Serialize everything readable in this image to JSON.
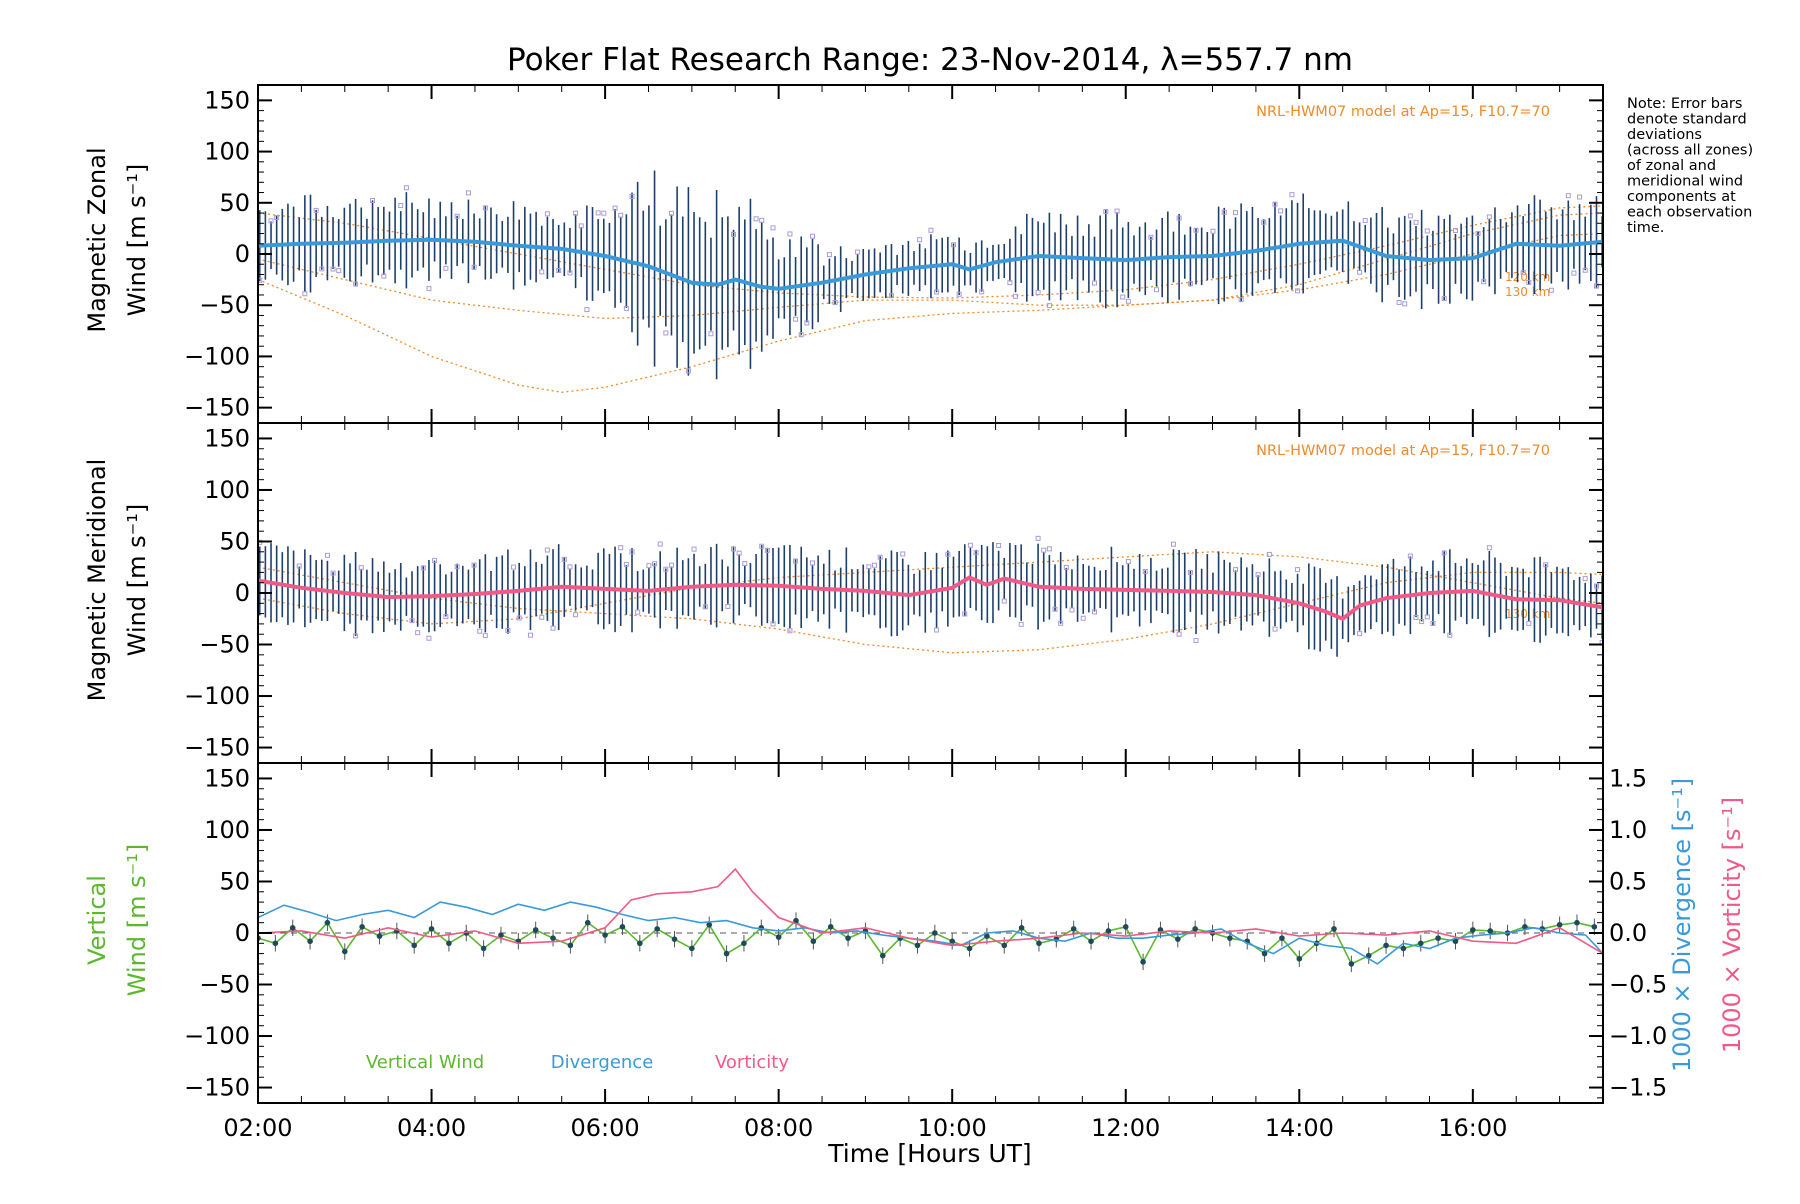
{
  "chart_data": [
    {
      "type": "line",
      "title": "Poker Flat Research Range: 23-Nov-2014, λ=557.7 nm",
      "ylabel_line1": "Magnetic Zonal",
      "ylabel_line2": "Wind [m s⁻¹]",
      "ylim": [
        -165,
        165
      ],
      "yticks": [
        150,
        100,
        50,
        0,
        -50,
        -100,
        -150
      ],
      "xlim": [
        2.0,
        17.5
      ],
      "model_label": "NRL-HWM07 model at Ap=15, F10.7=70",
      "height_labels": [
        "120 km",
        "130 km"
      ],
      "series": [
        {
          "name": "",
          "color": "#3a9ad9",
          "x": [
            2.0,
            2.5,
            3.0,
            3.5,
            4.0,
            4.5,
            5.0,
            5.5,
            6.0,
            6.5,
            7.0,
            7.3,
            7.5,
            7.8,
            8.0,
            8.5,
            9.0,
            9.5,
            10.0,
            10.2,
            10.5,
            11.0,
            11.5,
            12.0,
            12.5,
            13.0,
            13.5,
            14.0,
            14.5,
            15.0,
            15.5,
            16.0,
            16.5,
            17.0,
            17.5
          ],
          "y": [
            8,
            10,
            11,
            13,
            14,
            12,
            8,
            5,
            -2,
            -12,
            -28,
            -30,
            -25,
            -32,
            -34,
            -28,
            -20,
            -14,
            -10,
            -15,
            -8,
            -2,
            -4,
            -6,
            -3,
            -2,
            3,
            10,
            13,
            -2,
            -6,
            -4,
            10,
            8,
            12
          ]
        }
      ],
      "model_curves": [
        {
          "x": [
            2.0,
            3.0,
            4.0,
            5.0,
            5.5,
            6.0,
            7.0,
            8.0,
            9.0,
            10.0,
            11.0,
            12.0,
            13.0,
            14.0,
            15.0,
            16.0,
            17.0,
            17.5
          ],
          "y": [
            -25,
            -60,
            -100,
            -128,
            -135,
            -130,
            -110,
            -85,
            -65,
            -58,
            -55,
            -50,
            -45,
            -35,
            -20,
            0,
            18,
            20
          ]
        },
        {
          "x": [
            2.0,
            3.0,
            4.0,
            5.0,
            6.0,
            7.0,
            8.0,
            9.0,
            10.0,
            11.0,
            12.0,
            13.0,
            14.0,
            15.0,
            16.0,
            17.0,
            17.5
          ],
          "y": [
            -5,
            -25,
            -45,
            -55,
            -63,
            -60,
            -52,
            -45,
            -45,
            -50,
            -50,
            -45,
            -30,
            -5,
            20,
            38,
            40
          ]
        },
        {
          "x": [
            2.0,
            3.0,
            4.0,
            5.0,
            6.0,
            7.0,
            8.0,
            9.0,
            10.0,
            11.0,
            12.0,
            13.0,
            14.0,
            15.0,
            16.0,
            17.0,
            17.5
          ],
          "y": [
            40,
            30,
            15,
            0,
            -15,
            -30,
            -38,
            -42,
            -43,
            -40,
            -35,
            -25,
            -10,
            8,
            28,
            45,
            47
          ]
        }
      ]
    },
    {
      "type": "line",
      "ylabel_line1": "Magnetic Meridional",
      "ylabel_line2": "Wind [m s⁻¹]",
      "ylim": [
        -165,
        165
      ],
      "yticks": [
        150,
        100,
        50,
        0,
        -50,
        -100,
        -150
      ],
      "xlim": [
        2.0,
        17.5
      ],
      "model_label": "NRL-HWM07 model at Ap=15, F10.7=70",
      "height_labels": [
        "130 km"
      ],
      "series": [
        {
          "name": "",
          "color": "#f05a86",
          "x": [
            2.0,
            2.5,
            3.0,
            3.5,
            4.0,
            4.5,
            5.0,
            5.5,
            6.0,
            6.5,
            7.0,
            7.5,
            8.0,
            8.5,
            9.0,
            9.5,
            10.0,
            10.2,
            10.4,
            10.6,
            11.0,
            11.5,
            12.0,
            12.5,
            13.0,
            13.5,
            14.0,
            14.3,
            14.5,
            14.7,
            15.0,
            15.5,
            16.0,
            16.5,
            17.0,
            17.5
          ],
          "y": [
            12,
            5,
            0,
            -4,
            -3,
            -1,
            2,
            6,
            4,
            2,
            6,
            8,
            7,
            4,
            2,
            -2,
            5,
            15,
            8,
            14,
            6,
            4,
            3,
            2,
            1,
            -2,
            -10,
            -18,
            -25,
            -12,
            -5,
            0,
            2,
            -6,
            -7,
            -14
          ]
        }
      ],
      "model_curves": [
        {
          "x": [
            2.0,
            3.0,
            4.0,
            5.0,
            6.0,
            7.0,
            8.0,
            9.0,
            10.0,
            11.0,
            12.0,
            13.0,
            14.0,
            15.0,
            16.0,
            17.0,
            17.5
          ],
          "y": [
            -5,
            -20,
            -30,
            -25,
            -10,
            5,
            15,
            20,
            25,
            30,
            35,
            40,
            35,
            25,
            10,
            -5,
            -10
          ]
        },
        {
          "x": [
            2.0,
            3.0,
            4.0,
            5.0,
            6.0,
            7.0,
            8.0,
            9.0,
            10.0,
            11.0,
            12.0,
            13.0,
            14.0,
            15.0,
            16.0,
            17.0,
            17.5
          ],
          "y": [
            25,
            10,
            -5,
            -15,
            -20,
            -25,
            -35,
            -50,
            -58,
            -55,
            -45,
            -30,
            -10,
            10,
            20,
            20,
            18
          ]
        }
      ]
    },
    {
      "type": "line",
      "ylabel_line1": "Vertical",
      "ylabel_line2": "Wind [m s⁻¹]",
      "ylim": [
        -165,
        165
      ],
      "yticks": [
        150,
        100,
        50,
        0,
        -50,
        -100,
        -150
      ],
      "xlim": [
        2.0,
        17.5
      ],
      "xticks": [
        "02:00",
        "04:00",
        "06:00",
        "08:00",
        "10:00",
        "12:00",
        "14:00",
        "16:00"
      ],
      "xtick_values": [
        2,
        4,
        6,
        8,
        10,
        12,
        14,
        16
      ],
      "xlabel": "Time [Hours UT]",
      "right_axis": {
        "ylim": [
          -1.65,
          1.65
        ],
        "ticks": [
          "1.5",
          "1.0",
          "0.5",
          "0.0",
          "−0.5",
          "−1.0",
          "−1.5"
        ],
        "tick_values": [
          1.5,
          1.0,
          0.5,
          0.0,
          -0.5,
          -1.0,
          -1.5
        ],
        "label_divergence": "1000 × Divergence [s⁻¹]",
        "label_vorticity": "1000 × Vorticity [s⁻¹]"
      },
      "legend": {
        "vertical": "Vertical Wind",
        "divergence": "Divergence",
        "vorticity": "Vorticity"
      },
      "series": [
        {
          "name": "Vertical Wind",
          "color": "#5cb82e",
          "axis": "left",
          "x": [
            2.0,
            2.2,
            2.4,
            2.6,
            2.8,
            3.0,
            3.2,
            3.4,
            3.6,
            3.8,
            4.0,
            4.2,
            4.4,
            4.6,
            4.8,
            5.0,
            5.2,
            5.4,
            5.6,
            5.8,
            6.0,
            6.2,
            6.4,
            6.6,
            6.8,
            7.0,
            7.2,
            7.4,
            7.6,
            7.8,
            8.0,
            8.2,
            8.4,
            8.6,
            8.8,
            9.0,
            9.2,
            9.4,
            9.6,
            9.8,
            10.0,
            10.2,
            10.4,
            10.6,
            10.8,
            11.0,
            11.2,
            11.4,
            11.6,
            11.8,
            12.0,
            12.2,
            12.4,
            12.6,
            12.8,
            13.0,
            13.2,
            13.4,
            13.6,
            13.8,
            14.0,
            14.2,
            14.4,
            14.6,
            14.8,
            15.0,
            15.2,
            15.4,
            15.6,
            15.8,
            16.0,
            16.2,
            16.4,
            16.6,
            16.8,
            17.0,
            17.2,
            17.4
          ],
          "y": [
            -5,
            -10,
            5,
            -8,
            10,
            -18,
            6,
            -3,
            2,
            -12,
            4,
            -10,
            0,
            -15,
            -2,
            -8,
            3,
            -5,
            -12,
            10,
            -2,
            6,
            -10,
            4,
            -6,
            -15,
            8,
            -20,
            -10,
            5,
            -4,
            12,
            -8,
            6,
            -5,
            2,
            -22,
            -5,
            -12,
            0,
            -8,
            -15,
            -3,
            -12,
            5,
            -10,
            -6,
            4,
            -8,
            2,
            6,
            -28,
            3,
            -6,
            4,
            0,
            -5,
            -8,
            -20,
            -5,
            -25,
            -10,
            4,
            -30,
            -22,
            -12,
            -15,
            -10,
            -5,
            -8,
            3,
            2,
            0,
            6,
            4,
            8,
            10,
            6
          ]
        },
        {
          "name": "Divergence",
          "color": "#3a9ad9",
          "axis": "right",
          "x": [
            2.0,
            2.3,
            2.6,
            2.9,
            3.2,
            3.5,
            3.8,
            4.1,
            4.4,
            4.7,
            5.0,
            5.3,
            5.6,
            5.9,
            6.2,
            6.5,
            6.8,
            7.1,
            7.4,
            7.7,
            8.0,
            8.3,
            8.6,
            8.9,
            9.2,
            9.5,
            9.8,
            10.1,
            10.4,
            10.7,
            11.0,
            11.3,
            11.6,
            11.9,
            12.2,
            12.5,
            12.8,
            13.1,
            13.4,
            13.7,
            14.0,
            14.3,
            14.6,
            14.9,
            15.2,
            15.5,
            15.8,
            16.1,
            16.4,
            16.7,
            17.0,
            17.3,
            17.5
          ],
          "y": [
            0.15,
            0.27,
            0.2,
            0.12,
            0.18,
            0.22,
            0.15,
            0.3,
            0.25,
            0.18,
            0.28,
            0.22,
            0.3,
            0.25,
            0.18,
            0.12,
            0.15,
            0.1,
            0.12,
            0.05,
            0.02,
            0.05,
            0.0,
            0.02,
            -0.02,
            -0.05,
            -0.08,
            -0.12,
            0.0,
            0.02,
            -0.05,
            -0.08,
            0.0,
            -0.05,
            -0.05,
            -0.02,
            0.0,
            0.04,
            -0.1,
            -0.2,
            -0.05,
            -0.12,
            -0.15,
            -0.3,
            -0.1,
            -0.15,
            -0.05,
            -0.02,
            0.0,
            0.05,
            0.0,
            -0.02,
            -0.2
          ]
        },
        {
          "name": "Vorticity",
          "color": "#f05a86",
          "axis": "right",
          "x": [
            2.0,
            2.5,
            3.0,
            3.5,
            4.0,
            4.5,
            5.0,
            5.5,
            6.0,
            6.3,
            6.6,
            7.0,
            7.3,
            7.5,
            7.7,
            8.0,
            8.5,
            9.0,
            9.5,
            10.0,
            10.5,
            11.0,
            11.5,
            12.0,
            12.5,
            13.0,
            13.5,
            14.0,
            14.5,
            15.0,
            15.5,
            16.0,
            16.5,
            17.0,
            17.5
          ],
          "y": [
            0.0,
            0.02,
            -0.05,
            0.05,
            -0.04,
            0.02,
            -0.1,
            -0.08,
            0.05,
            0.32,
            0.38,
            0.4,
            0.45,
            0.62,
            0.4,
            0.15,
            0.0,
            0.05,
            -0.05,
            -0.12,
            -0.08,
            -0.05,
            0.0,
            -0.03,
            0.02,
            0.0,
            0.04,
            -0.03,
            0.0,
            -0.02,
            0.02,
            -0.08,
            -0.1,
            0.05,
            -0.2
          ]
        }
      ]
    }
  ],
  "note": [
    "Note: Error bars",
    "denote standard",
    "deviations",
    "(across all zones)",
    "of zonal and",
    "meridional wind",
    "components at",
    "each observation",
    "time."
  ],
  "colors": {
    "zonal_mean": "#3a9ad9",
    "meridional_mean": "#f05a86",
    "model": "#f08a2a",
    "scatter": "#a99cd9",
    "vertical": "#5cb82e"
  }
}
